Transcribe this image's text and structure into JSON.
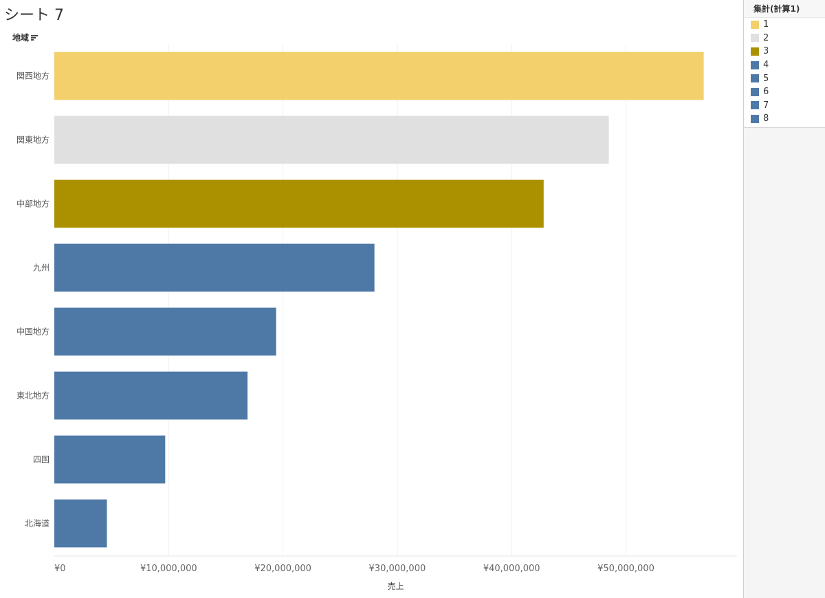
{
  "sheet_title": "シート 7",
  "chart_data": {
    "type": "bar",
    "orientation": "horizontal",
    "row_header": "地域",
    "categories": [
      "関西地方",
      "関東地方",
      "中部地方",
      "九州",
      "中国地方",
      "東北地方",
      "四国",
      "北海道"
    ],
    "values": [
      56800000,
      48500000,
      42800000,
      28000000,
      19400000,
      16900000,
      9700000,
      4600000
    ],
    "rank": [
      1,
      2,
      3,
      4,
      5,
      6,
      7,
      8
    ],
    "xlabel": "売上",
    "xlim": [
      0,
      59500000
    ],
    "xticks": [
      0,
      10000000,
      20000000,
      30000000,
      40000000,
      50000000
    ],
    "xtick_labels": [
      "¥0",
      "¥10,000,000",
      "¥20,000,000",
      "¥30,000,000",
      "¥40,000,000",
      "¥50,000,000"
    ],
    "grid": true,
    "legend": {
      "title": "集計(計算1)",
      "placement": "right",
      "items": [
        {
          "label": "1",
          "color": "#f3d06b"
        },
        {
          "label": "2",
          "color": "#e0e0e0"
        },
        {
          "label": "3",
          "color": "#ab9000"
        },
        {
          "label": "4",
          "color": "#4e79a7"
        },
        {
          "label": "5",
          "color": "#4e79a7"
        },
        {
          "label": "6",
          "color": "#4e79a7"
        },
        {
          "label": "7",
          "color": "#4e79a7"
        },
        {
          "label": "8",
          "color": "#4e79a7"
        }
      ]
    }
  }
}
